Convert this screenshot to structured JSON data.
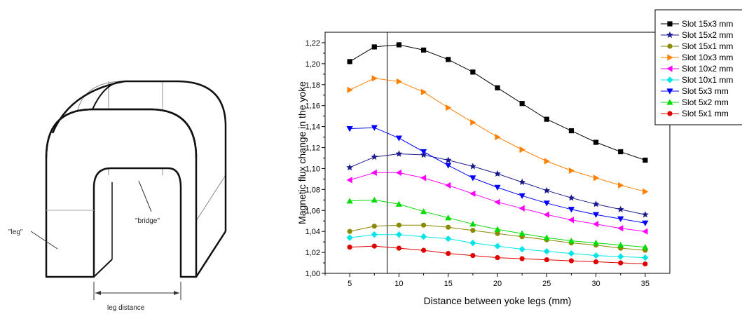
{
  "diagram": {
    "labels": {
      "leg": "\"leg\"",
      "bridge": "\"bridge\"",
      "leg_distance": "leg distance"
    }
  },
  "chart_data": {
    "type": "line",
    "xlabel": "Distance between yoke legs (mm)",
    "ylabel": "Magnetic flux change in the yoke",
    "xlim": [
      2.5,
      37.5
    ],
    "ylim": [
      1.0,
      1.23
    ],
    "xticks": [
      "5",
      "10",
      "15",
      "20",
      "25",
      "30",
      "35"
    ],
    "yticks": [
      "1,00",
      "1,02",
      "1,04",
      "1,06",
      "1,08",
      "1,10",
      "1,12",
      "1,14",
      "1,16",
      "1,18",
      "1,20",
      "1,22"
    ],
    "vline_x": 8.8,
    "legend_position": "top-right",
    "x": [
      5,
      7.5,
      10,
      12.5,
      15,
      17.5,
      20,
      22.5,
      25,
      27.5,
      30,
      32.5,
      35
    ],
    "series": [
      {
        "name": "Slot 15x3 mm",
        "color": "#000000",
        "marker": "square",
        "values": [
          1.202,
          1.216,
          1.218,
          1.213,
          1.204,
          1.192,
          1.177,
          1.162,
          1.147,
          1.136,
          1.125,
          1.116,
          1.108
        ]
      },
      {
        "name": "Slot 15x2 mm",
        "color": "#1a1a8c",
        "marker": "star",
        "values": [
          1.101,
          1.111,
          1.114,
          1.113,
          1.108,
          1.102,
          1.095,
          1.087,
          1.079,
          1.072,
          1.066,
          1.061,
          1.056
        ]
      },
      {
        "name": "Slot 15x1 mm",
        "color": "#8a8a00",
        "marker": "circle",
        "values": [
          1.04,
          1.045,
          1.046,
          1.046,
          1.044,
          1.041,
          1.038,
          1.035,
          1.032,
          1.029,
          1.027,
          1.024,
          1.022
        ]
      },
      {
        "name": "Slot 10x3 mm",
        "color": "#ff8000",
        "marker": "triangle-right",
        "values": [
          1.175,
          1.186,
          1.183,
          1.173,
          1.158,
          1.144,
          1.13,
          1.118,
          1.107,
          1.098,
          1.091,
          1.084,
          1.078
        ]
      },
      {
        "name": "Slot 10x2 mm",
        "color": "#ff00ff",
        "marker": "triangle-left",
        "values": [
          1.089,
          1.096,
          1.096,
          1.091,
          1.084,
          1.076,
          1.068,
          1.062,
          1.056,
          1.051,
          1.047,
          1.043,
          1.04
        ]
      },
      {
        "name": "Slot 10x1 mm",
        "color": "#00e5e5",
        "marker": "diamond",
        "values": [
          1.034,
          1.037,
          1.037,
          1.035,
          1.033,
          1.029,
          1.026,
          1.023,
          1.021,
          1.019,
          1.017,
          1.016,
          1.015
        ]
      },
      {
        "name": "Slot 5x3 mm",
        "color": "#0000ff",
        "marker": "triangle-down",
        "values": [
          1.138,
          1.139,
          1.129,
          1.116,
          1.103,
          1.091,
          1.082,
          1.074,
          1.067,
          1.061,
          1.056,
          1.052,
          1.048
        ]
      },
      {
        "name": "Slot 5x2 mm",
        "color": "#00dd00",
        "marker": "triangle-up",
        "values": [
          1.069,
          1.07,
          1.066,
          1.059,
          1.053,
          1.047,
          1.042,
          1.038,
          1.034,
          1.031,
          1.029,
          1.027,
          1.025
        ]
      },
      {
        "name": "Slot 5x1 mm",
        "color": "#e00000",
        "marker": "circle",
        "values": [
          1.025,
          1.026,
          1.024,
          1.022,
          1.019,
          1.017,
          1.015,
          1.014,
          1.013,
          1.012,
          1.011,
          1.01,
          1.009
        ]
      }
    ]
  }
}
